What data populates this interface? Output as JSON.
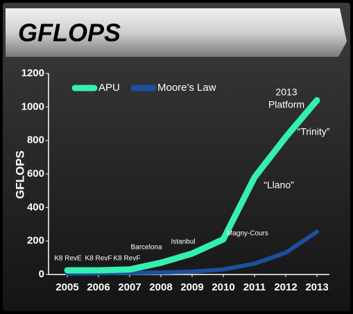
{
  "chart_data": {
    "type": "line",
    "title": "GFLOPS",
    "y_label": "GFLOPS",
    "x": [
      2005,
      2006,
      2007,
      2008,
      2009,
      2010,
      2011,
      2012,
      2013
    ],
    "series": [
      {
        "name": "APU",
        "color": "#35efb0",
        "values": [
          25,
          25,
          30,
          70,
          125,
          210,
          580,
          820,
          1040
        ]
      },
      {
        "name": "Moore's Law",
        "color": "#1d4f9e",
        "values": [
          5,
          7,
          10,
          12,
          17,
          30,
          65,
          130,
          255
        ]
      }
    ],
    "xlim": [
      2004.4,
      2013.4
    ],
    "xticks": [
      2005,
      2006,
      2007,
      2008,
      2009,
      2010,
      2011,
      2012,
      2013
    ],
    "ylim": [
      0,
      1200
    ],
    "yticks": [
      0,
      200,
      400,
      600,
      800,
      1000,
      1200
    ],
    "legend": "top-left",
    "annotations": [
      "K8 RevE",
      "K8 RevF",
      "K8 RevF",
      "Barcelona",
      "Istanbul",
      "Magny-Cours",
      "“Llano”",
      "“Trinity”",
      "2013",
      "Platform"
    ]
  }
}
